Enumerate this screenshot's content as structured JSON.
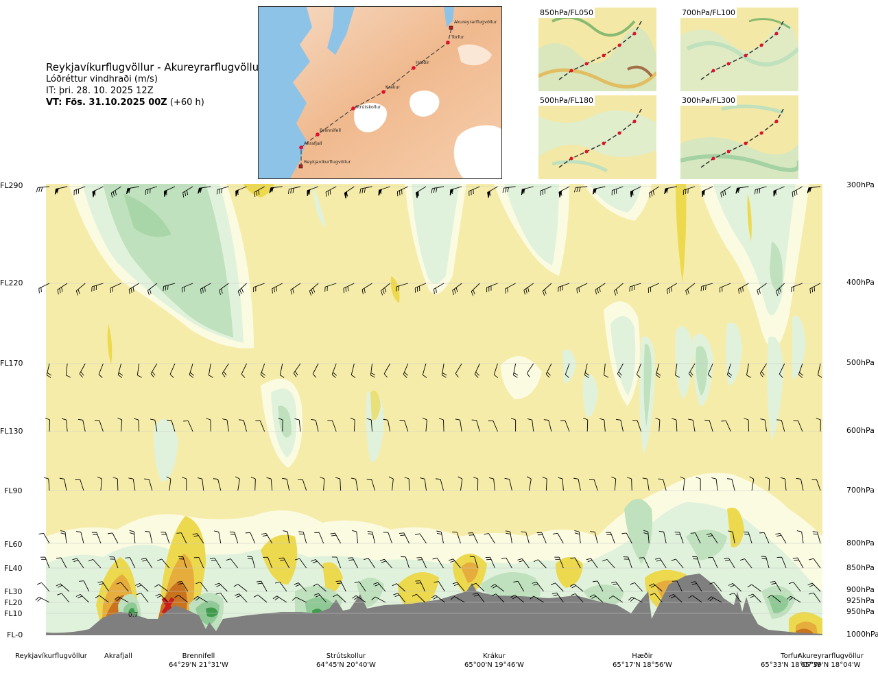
{
  "header": {
    "route": "Reykjavíkurflugvöllur - Akureyrarflugvöllur",
    "parameter": "Lóðréttur vindhraði (m/s)",
    "initial_time": "IT: þri. 28. 10. 2025 12Z",
    "valid_time_bold": "VT: Fös. 31.10.2025 00Z",
    "valid_time_offset": "(+60 h)"
  },
  "map": {
    "points": [
      {
        "name": "Akureyrarflugvöllur"
      },
      {
        "name": "Torfur"
      },
      {
        "name": "Hæðir"
      },
      {
        "name": "Krákur"
      },
      {
        "name": "Strútskollur"
      },
      {
        "name": "Brennifell"
      },
      {
        "name": "Akrafjall"
      },
      {
        "name": "Reykjavíkurflugvöllur"
      }
    ]
  },
  "minimaps": [
    {
      "label": "850hPa/FL050"
    },
    {
      "label": "700hPa/FL100"
    },
    {
      "label": "500hPa/FL180"
    },
    {
      "label": "300hPa/FL300"
    }
  ],
  "chart_data": {
    "type": "heatmap",
    "subtype": "vertical cross-section",
    "left_axis_levels": [
      {
        "fl": "FL290",
        "hpa": "300hPa"
      },
      {
        "fl": "FL220",
        "hpa": "400hPa"
      },
      {
        "fl": "FL170",
        "hpa": "500hPa"
      },
      {
        "fl": "FL130",
        "hpa": "600hPa"
      },
      {
        "fl": "FL90",
        "hpa": "700hPa"
      },
      {
        "fl": "FL60",
        "hpa": "800hPa"
      },
      {
        "fl": "FL40",
        "hpa": "850hPa"
      },
      {
        "fl": "FL30",
        "hpa": "900hPa"
      },
      {
        "fl": "FL20",
        "hpa": "925hPa"
      },
      {
        "fl": "FL10",
        "hpa": "950hPa"
      },
      {
        "fl": "FL-0",
        "hpa": "1000hPa"
      }
    ],
    "waypoints": [
      {
        "name": "Reykjavíkurflugvöllur",
        "coord": ""
      },
      {
        "name": "Akrafjall",
        "coord": ""
      },
      {
        "name": "Brennifell",
        "coord": "64°29'N 21°31'W"
      },
      {
        "name": "Strútskollur",
        "coord": "64°45'N 20°40'W"
      },
      {
        "name": "Krákur",
        "coord": "65°00'N 19°46'W"
      },
      {
        "name": "Hæðir",
        "coord": "65°17'N 18°56'W"
      },
      {
        "name": "Torfur",
        "coord": "65°33'N 18°07'W"
      },
      {
        "name": "Akureyrarflugvöllur",
        "coord": "65°39'N 18°04'W"
      }
    ],
    "annotations": [
      {
        "text": "0.7"
      }
    ],
    "colors": {
      "background_yellow": "#f6ecaa",
      "pale": "#fbfbe2",
      "light_green": "#e1f2dc",
      "mid_green": "#bfe1bd",
      "dark_green": "#8fc995",
      "deep_green": "#3f9a4c",
      "yellow": "#ecd94e",
      "orange": "#e6ad3c",
      "dark_orange": "#c9731f",
      "brown": "#8a3a12",
      "red": "#c81e1e",
      "terrain": "#7f7f7f"
    }
  }
}
